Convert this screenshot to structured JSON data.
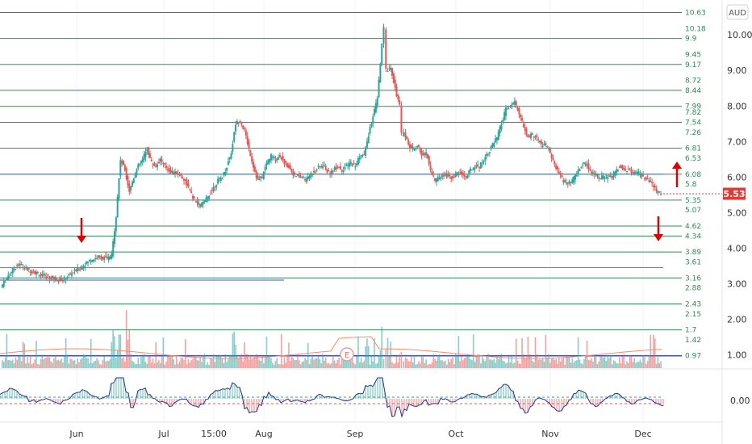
{
  "currency": "AUD",
  "current_price": "5.53",
  "earnings_marker": "E",
  "colors": {
    "up": "#26a69a",
    "down": "#ef5350",
    "level_line": "#2e8b57",
    "blue_line": "#3f51b5",
    "red_line": "#ef5350",
    "badge": "#e53935",
    "arrow": "#e00000",
    "osc_line": "#283593"
  },
  "chart_data": {
    "type": "candlestick",
    "y_axis": {
      "range": [
        0.6,
        10.8
      ],
      "ticks": [
        "1.00",
        "2.00",
        "3.00",
        "4.00",
        "5.00",
        "6.00",
        "7.00",
        "8.00",
        "9.00",
        "10.00"
      ]
    },
    "x_axis": {
      "tick_labels": [
        "Jun",
        "Jul",
        "15:00",
        "Aug",
        "Sep",
        "Oct",
        "Nov",
        "Dec"
      ]
    },
    "level_labels": [
      "10.63",
      "10.18",
      "9.9",
      "9.45",
      "9.17",
      "8.72",
      "8.44",
      "7.99",
      "7.82",
      "7.54",
      "7.26",
      "6.81",
      "6.53",
      "6.08",
      "5.8",
      "5.35",
      "5.07",
      "4.62",
      "4.34",
      "3.89",
      "3.61",
      "3.16",
      "2.88",
      "2.43",
      "2.15",
      "1.7",
      "1.42",
      "0.97"
    ],
    "level_lines": [
      10.63,
      9.9,
      9.17,
      8.44,
      7.99,
      7.54,
      6.81,
      6.08,
      5.35,
      4.62,
      4.34,
      3.89,
      3.16,
      2.43,
      1.7,
      0.97
    ],
    "blue_line": 0.97,
    "red_line": 3.45,
    "short_blue_line": 3.1,
    "price_path": [
      [
        0,
        2.9
      ],
      [
        4,
        3.3
      ],
      [
        8,
        3.55
      ],
      [
        12,
        3.4
      ],
      [
        16,
        3.3
      ],
      [
        20,
        3.2
      ],
      [
        24,
        3.15
      ],
      [
        28,
        3.1
      ],
      [
        32,
        3.3
      ],
      [
        36,
        3.45
      ],
      [
        40,
        3.65
      ],
      [
        44,
        3.75
      ],
      [
        48,
        3.7
      ],
      [
        50,
        3.8
      ],
      [
        52,
        4.9
      ],
      [
        54,
        6.5
      ],
      [
        56,
        6.2
      ],
      [
        58,
        5.6
      ],
      [
        60,
        6.0
      ],
      [
        62,
        6.3
      ],
      [
        64,
        6.5
      ],
      [
        66,
        6.8
      ],
      [
        68,
        6.4
      ],
      [
        70,
        6.3
      ],
      [
        72,
        6.5
      ],
      [
        74,
        6.3
      ],
      [
        76,
        6.2
      ],
      [
        78,
        6.1
      ],
      [
        80,
        6.1
      ],
      [
        82,
        6.0
      ],
      [
        84,
        5.8
      ],
      [
        86,
        5.5
      ],
      [
        88,
        5.3
      ],
      [
        90,
        5.2
      ],
      [
        92,
        5.3
      ],
      [
        94,
        5.5
      ],
      [
        96,
        5.7
      ],
      [
        98,
        5.9
      ],
      [
        100,
        6.0
      ],
      [
        102,
        6.3
      ],
      [
        104,
        6.7
      ],
      [
        106,
        7.5
      ],
      [
        108,
        7.6
      ],
      [
        110,
        7.3
      ],
      [
        112,
        6.8
      ],
      [
        114,
        6.3
      ],
      [
        116,
        5.9
      ],
      [
        118,
        6.0
      ],
      [
        120,
        6.4
      ],
      [
        122,
        6.6
      ],
      [
        124,
        6.5
      ],
      [
        126,
        6.6
      ],
      [
        128,
        6.4
      ],
      [
        130,
        6.3
      ],
      [
        132,
        6.1
      ],
      [
        134,
        6.0
      ],
      [
        136,
        6.0
      ],
      [
        138,
        5.9
      ],
      [
        140,
        6.1
      ],
      [
        142,
        6.2
      ],
      [
        144,
        6.3
      ],
      [
        146,
        6.3
      ],
      [
        148,
        6.1
      ],
      [
        150,
        6.2
      ],
      [
        152,
        6.3
      ],
      [
        154,
        6.2
      ],
      [
        156,
        6.3
      ],
      [
        158,
        6.4
      ],
      [
        160,
        6.3
      ],
      [
        162,
        6.6
      ],
      [
        164,
        6.6
      ],
      [
        166,
        7.2
      ],
      [
        168,
        7.7
      ],
      [
        170,
        8.2
      ],
      [
        172,
        9.7
      ],
      [
        173,
        10.2
      ],
      [
        174,
        9.0
      ],
      [
        176,
        9.1
      ],
      [
        178,
        8.5
      ],
      [
        180,
        8.0
      ],
      [
        181,
        7.2
      ],
      [
        182,
        7.3
      ],
      [
        184,
        6.9
      ],
      [
        186,
        6.8
      ],
      [
        188,
        6.9
      ],
      [
        190,
        6.6
      ],
      [
        192,
        6.7
      ],
      [
        194,
        6.2
      ],
      [
        196,
        5.9
      ],
      [
        198,
        6.0
      ],
      [
        200,
        6.1
      ],
      [
        202,
        6.0
      ],
      [
        204,
        6.0
      ],
      [
        206,
        6.1
      ],
      [
        208,
        6.1
      ],
      [
        210,
        6.0
      ],
      [
        212,
        6.2
      ],
      [
        214,
        6.3
      ],
      [
        216,
        6.3
      ],
      [
        218,
        6.5
      ],
      [
        220,
        6.7
      ],
      [
        222,
        6.9
      ],
      [
        224,
        7.1
      ],
      [
        226,
        7.5
      ],
      [
        228,
        7.9
      ],
      [
        230,
        8.0
      ],
      [
        232,
        8.1
      ],
      [
        234,
        7.8
      ],
      [
        236,
        7.4
      ],
      [
        238,
        7.1
      ],
      [
        240,
        7.2
      ],
      [
        242,
        7.1
      ],
      [
        244,
        6.9
      ],
      [
        246,
        6.9
      ],
      [
        248,
        6.7
      ],
      [
        250,
        6.3
      ],
      [
        252,
        6.1
      ],
      [
        254,
        5.9
      ],
      [
        256,
        5.8
      ],
      [
        258,
        5.9
      ],
      [
        260,
        6.1
      ],
      [
        262,
        6.3
      ],
      [
        264,
        6.4
      ],
      [
        266,
        6.2
      ],
      [
        268,
        6.1
      ],
      [
        270,
        6.0
      ],
      [
        272,
        6.0
      ],
      [
        274,
        6.0
      ],
      [
        276,
        6.0
      ],
      [
        278,
        6.2
      ],
      [
        280,
        6.3
      ],
      [
        282,
        6.2
      ],
      [
        284,
        6.2
      ],
      [
        286,
        6.1
      ],
      [
        288,
        6.1
      ],
      [
        290,
        6.0
      ],
      [
        292,
        5.9
      ],
      [
        294,
        5.8
      ],
      [
        296,
        5.6
      ],
      [
        298,
        5.53
      ]
    ]
  }
}
